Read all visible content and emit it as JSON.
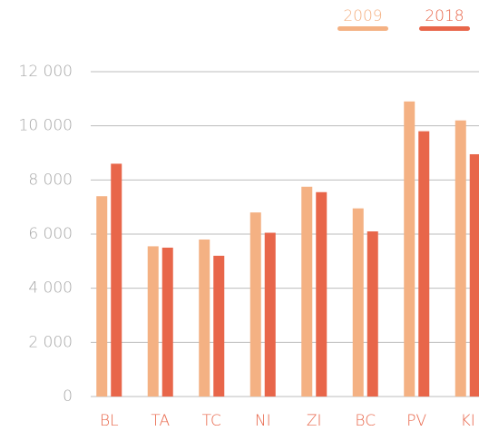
{
  "chart_data": {
    "type": "bar",
    "categories": [
      "BL",
      "TA",
      "TC",
      "NI",
      "ZI",
      "BC",
      "PV",
      "KI"
    ],
    "series": [
      {
        "name": "2009",
        "color": "#f4b183",
        "values": [
          7400,
          5550,
          5800,
          6800,
          7750,
          6950,
          10900,
          10200
        ]
      },
      {
        "name": "2018",
        "color": "#e8664a",
        "values": [
          8600,
          5500,
          5200,
          6050,
          7550,
          6100,
          9800,
          8950
        ]
      }
    ],
    "ylim": [
      0,
      12000
    ],
    "yticks": [
      {
        "value": 0,
        "label": "0"
      },
      {
        "value": 2000,
        "label": "2 000"
      },
      {
        "value": 4000,
        "label": "4 000"
      },
      {
        "value": 6000,
        "label": "6 000"
      },
      {
        "value": 8000,
        "label": "8 000"
      },
      {
        "value": 10000,
        "label": "10 000"
      },
      {
        "value": 12000,
        "label": "12 000"
      }
    ],
    "grid": true
  }
}
